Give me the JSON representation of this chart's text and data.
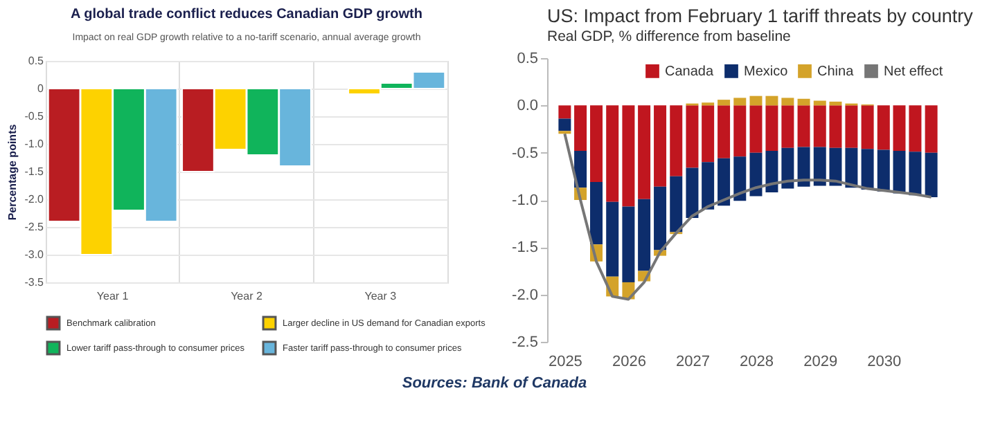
{
  "chart_data": [
    {
      "type": "bar",
      "title": "A global trade conflict reduces Canadian GDP growth",
      "subtitle": "Impact on real GDP growth relative to a no-tariff scenario, annual average growth",
      "ylabel": "Percentage points",
      "categories": [
        "Year 1",
        "Year 2",
        "Year 3"
      ],
      "series": [
        {
          "name": "Benchmark calibration",
          "color": "#b91d22",
          "values": [
            -2.4,
            -1.5,
            null
          ]
        },
        {
          "name": "Larger decline in US demand for Canadian exports",
          "color": "#fdd200",
          "values": [
            -3.0,
            -1.1,
            -0.1
          ]
        },
        {
          "name": "Lower tariff pass-through to consumer prices",
          "color": "#10b45b",
          "values": [
            -2.2,
            -1.2,
            0.1
          ]
        },
        {
          "name": "Faster tariff pass-through to consumer prices",
          "color": "#68b5dc",
          "values": [
            -2.4,
            -1.4,
            0.3
          ]
        }
      ],
      "ylim": [
        -3.5,
        0.5
      ],
      "yticks": [
        0.5,
        0,
        -0.5,
        {
          "value": -1,
          "label": "-1.0"
        },
        -1.5,
        {
          "value": -2,
          "label": "-2.0"
        },
        -2.5,
        {
          "value": -3,
          "label": "-3.0"
        },
        -3.5
      ],
      "grid": true,
      "legend": "bottom",
      "annotations": [
        "Sources: Bank of Canada"
      ]
    },
    {
      "type": "bar",
      "stacked": true,
      "title": "US: Impact from February 1 tariff threats by country",
      "subtitle": "Real GDP, % difference from baseline",
      "x": [
        "2025-01",
        "2025-04",
        "2025-07",
        "2025-10",
        "2026-01",
        "2026-04",
        "2026-07",
        "2026-10",
        "2027-01",
        "2027-04",
        "2027-07",
        "2027-10",
        "2028-01",
        "2028-04",
        "2028-07",
        "2028-10",
        "2029-01",
        "2029-04",
        "2029-07",
        "2029-10",
        "2030-01",
        "2030-04",
        "2030-07",
        "2030-10"
      ],
      "series": [
        {
          "name": "Canada",
          "color": "#c0161f",
          "values": [
            -0.14,
            -0.48,
            -0.81,
            -1.02,
            -1.07,
            -0.99,
            -0.86,
            -0.75,
            -0.66,
            -0.6,
            -0.56,
            -0.54,
            -0.5,
            -0.48,
            -0.45,
            -0.44,
            -0.44,
            -0.45,
            -0.45,
            -0.46,
            -0.47,
            -0.48,
            -0.49,
            -0.5
          ]
        },
        {
          "name": "Mexico",
          "color": "#0d2d6c",
          "values": [
            -0.13,
            -0.39,
            -0.66,
            -0.79,
            -0.8,
            -0.76,
            -0.67,
            -0.59,
            -0.53,
            -0.5,
            -0.5,
            -0.47,
            -0.46,
            -0.44,
            -0.43,
            -0.42,
            -0.41,
            -0.4,
            -0.42,
            -0.43,
            -0.44,
            -0.45,
            -0.46,
            -0.47
          ]
        },
        {
          "name": "China",
          "color": "#d4a32a",
          "values": [
            -0.03,
            -0.13,
            -0.18,
            -0.21,
            -0.18,
            -0.11,
            -0.06,
            -0.02,
            0.02,
            0.03,
            0.06,
            0.08,
            0.1,
            0.1,
            0.08,
            0.07,
            0.05,
            0.04,
            0.02,
            0.01,
            0,
            0,
            0,
            0
          ]
        },
        {
          "name": "Net effect",
          "type": "line",
          "color": "#767676",
          "values": [
            -0.3,
            -1.0,
            -1.65,
            -2.02,
            -2.05,
            -1.87,
            -1.55,
            -1.35,
            -1.17,
            -1.07,
            -1.0,
            -0.93,
            -0.87,
            -0.83,
            -0.8,
            -0.79,
            -0.79,
            -0.8,
            -0.84,
            -0.88,
            -0.9,
            -0.92,
            -0.94,
            -0.97
          ]
        }
      ],
      "xlim": [
        "2024-11",
        "2030-12"
      ],
      "xticks": [
        "2025",
        "2026",
        "2027",
        "2028",
        "2029",
        "2030"
      ],
      "ylim": [
        -2.5,
        0.5
      ],
      "yticks": [
        0.5,
        {
          "value": 0,
          "label": "0.0"
        },
        -0.5,
        {
          "value": -1,
          "label": "-1.0"
        },
        -1.5,
        {
          "value": -2,
          "label": "-2.0"
        },
        -2.5
      ],
      "legend": "top right"
    }
  ]
}
